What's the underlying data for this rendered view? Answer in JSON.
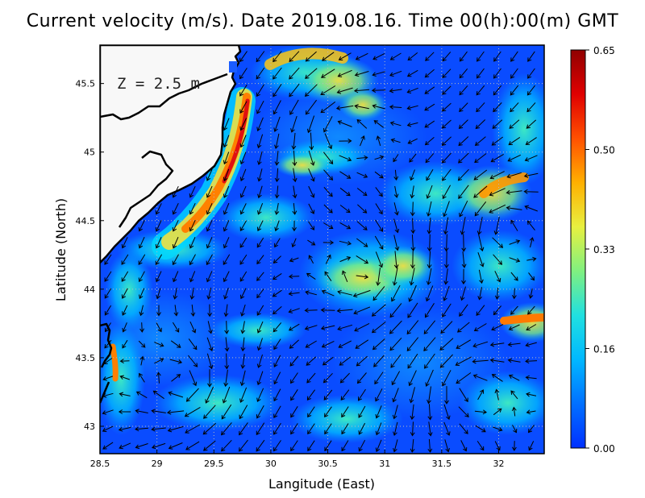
{
  "title": "Current velocity (m/s). Date 2019.08.16. Time 00(h):00(m) GMT",
  "depth_label": "Z = 2.5 m",
  "x_axis": {
    "label": "Langitude (East)",
    "ticks": [
      "28.5",
      "29",
      "29.5",
      "30",
      "30.5",
      "31",
      "31.5",
      "32"
    ],
    "range": [
      28.5,
      32.4
    ]
  },
  "y_axis": {
    "label": "Latitude (North)",
    "ticks": [
      "43",
      "43.5",
      "44",
      "44.5",
      "45",
      "45.5"
    ],
    "range": [
      42.8,
      45.78
    ]
  },
  "colorbar": {
    "ticks": [
      "0.65",
      "0.50",
      "0.33",
      "0.16",
      "0.00"
    ],
    "min": 0.0,
    "max": 0.65,
    "colors": [
      "#0030ff",
      "#0070ff",
      "#00b8ff",
      "#20e0e0",
      "#80f080",
      "#e8f040",
      "#ffb000",
      "#ff5000",
      "#e00000",
      "#900000"
    ]
  },
  "colors": {
    "land": "#f8f8f8",
    "coastline": "#000000",
    "grid": "#bbbbbb"
  }
}
